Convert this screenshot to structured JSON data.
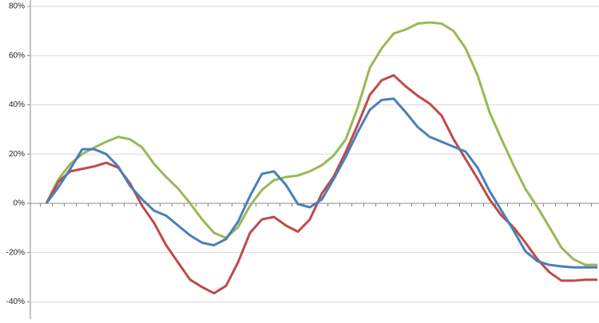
{
  "chart_data": {
    "type": "line",
    "categories": [
      null,
      null,
      null,
      null,
      null,
      null,
      null,
      null,
      null,
      null,
      null,
      null,
      null,
      null,
      null,
      null,
      null,
      null,
      null,
      null,
      null,
      null,
      null,
      null,
      null,
      null,
      null,
      null,
      null,
      null,
      null,
      null,
      null,
      null,
      null,
      null,
      null,
      null,
      null,
      null,
      null,
      null,
      null,
      null,
      null,
      null,
      null
    ],
    "series": [
      {
        "color": "#98b954",
        "values": [
          0,
          9.7,
          16,
          20,
          22.7,
          25,
          27,
          26,
          22.7,
          16,
          10.7,
          6,
          0,
          -6.5,
          -12,
          -14,
          -9.7,
          -1,
          5.5,
          9.4,
          10.7,
          11.3,
          13,
          15.5,
          19.5,
          26,
          39,
          55,
          63,
          69,
          70.6,
          73,
          73.5,
          73,
          70,
          63,
          52,
          37,
          26,
          15.5,
          5.8,
          -1.6,
          -9.7,
          -18,
          -22.7,
          -25,
          -25
        ]
      },
      {
        "color": "#be4b48",
        "values": [
          0,
          8.7,
          13,
          14,
          15,
          16.5,
          14.5,
          8,
          -1,
          -8,
          -17,
          -24,
          -31,
          -34,
          -36.5,
          -33.5,
          -24,
          -12,
          -6.5,
          -5.5,
          -9,
          -11.5,
          -6.5,
          4,
          11,
          21,
          32,
          44,
          50,
          52,
          47.5,
          43.7,
          40.5,
          35.6,
          26,
          18,
          10,
          1.6,
          -5,
          -9.7,
          -16,
          -22.7,
          -28,
          -31.4,
          -31.4,
          -31,
          -31
        ]
      },
      {
        "color": "#4a7ebb",
        "values": [
          0,
          6.5,
          14,
          22,
          22,
          20,
          15,
          7,
          1.6,
          -3,
          -5,
          -9,
          -13,
          -16,
          -17,
          -14.5,
          -7.5,
          3,
          12,
          13,
          7.5,
          -0.3,
          -1.6,
          1.6,
          10,
          19,
          29,
          38,
          42,
          42.5,
          37,
          31,
          27,
          25,
          23,
          21,
          14.5,
          5,
          -3,
          -11,
          -19.5,
          -23.5,
          -25,
          -25.6,
          -26,
          -26,
          -26
        ]
      }
    ],
    "ylim": [
      -47,
      81
    ],
    "yticks": [
      {
        "value": -40,
        "label": "-40%"
      },
      {
        "value": -20,
        "label": "-20%"
      },
      {
        "value": 0,
        "label": "0%"
      },
      {
        "value": 20,
        "label": "20%"
      },
      {
        "value": 40,
        "label": "40%"
      },
      {
        "value": 60,
        "label": "60%"
      },
      {
        "value": 80,
        "label": "80%"
      }
    ],
    "grid": true
  }
}
